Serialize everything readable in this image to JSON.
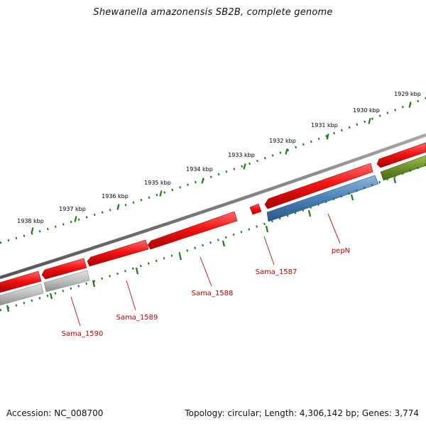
{
  "title": "Shewanella amazonensis SB2B, complete genome",
  "footer": {
    "accession": "Accession: NC_008700",
    "genome_info": "Topology: circular; Length: 4,306,142 bp; Genes: 3,774"
  },
  "colors": {
    "backbone": "#7a7a7a",
    "tick": "#1f7a1f",
    "tick_label": "#000000",
    "gene_red": "#ee1111",
    "gene_blue": "#4a80b8",
    "gene_grey": "#bdbdbd",
    "gene_olive": "#6f8f2a",
    "gene_label": "#c00000",
    "leader_line": "#cc2222"
  },
  "ticks": {
    "labels": [
      "1929 kbp",
      "1930 kbp",
      "1931 kbp",
      "1932 kbp",
      "1933 kbp",
      "1934 kbp",
      "1935 kbp",
      "1936 kbp",
      "1937 kbp",
      "1938 kbp"
    ]
  },
  "genes": {
    "pepN": "pepN",
    "sama_1587": "Sama_1587",
    "sama_1588": "Sama_1588",
    "sama_1589": "Sama_1589",
    "sama_1590": "Sama_1590"
  }
}
